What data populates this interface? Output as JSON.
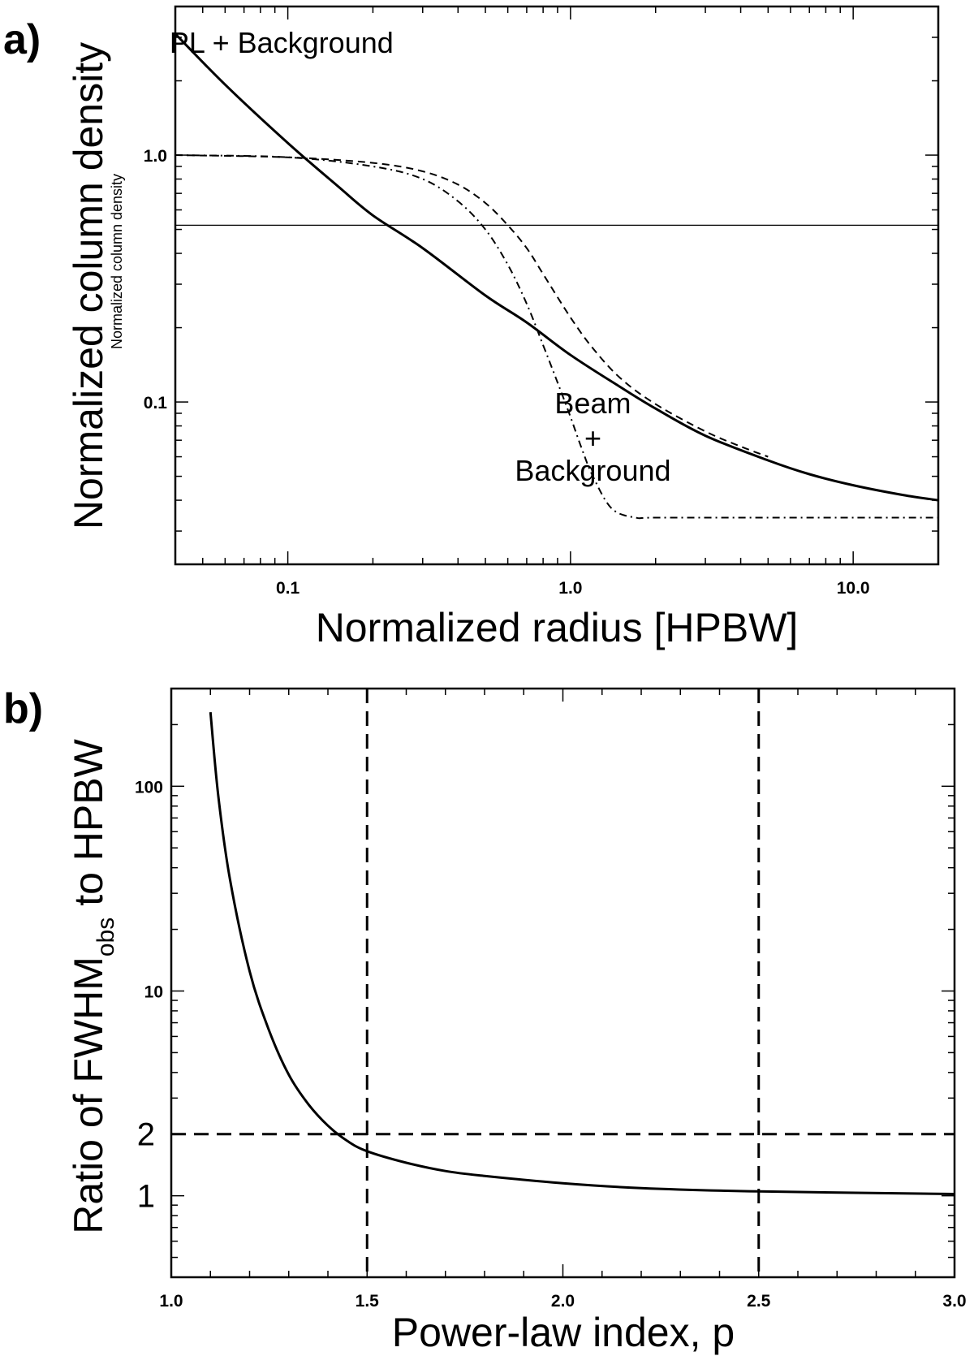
{
  "chart_data": [
    {
      "panel_label": "a)",
      "type": "line",
      "x_scale": "log",
      "y_scale": "log",
      "xlim": [
        0.04,
        20
      ],
      "ylim": [
        0.022,
        4.0
      ],
      "xlabel": "Normalized radius [HPBW]",
      "ylabel": "Normalized column density",
      "ylabel_small": "Normalized column density",
      "x_ticks": [
        {
          "value": 0.1,
          "label": "0.1"
        },
        {
          "value": 1.0,
          "label": "1.0"
        },
        {
          "value": 10.0,
          "label": "10.0"
        }
      ],
      "y_ticks": [
        {
          "value": 0.1,
          "label": "0.1"
        },
        {
          "value": 1.0,
          "label": "1.0"
        }
      ],
      "hline": 0.52,
      "annotations": [
        {
          "text": "PL + Background",
          "x": 0.095,
          "y": 2.6
        },
        {
          "text": "Beam",
          "x": 1.2,
          "y": 0.09
        },
        {
          "text": "+",
          "x": 1.2,
          "y": 0.065
        },
        {
          "text": "Background",
          "x": 1.2,
          "y": 0.048
        }
      ],
      "series": [
        {
          "style": "solid",
          "x": [
            0.04,
            0.06,
            0.1,
            0.15,
            0.2,
            0.3,
            0.5,
            0.7,
            1.0,
            1.5,
            2.0,
            3.0,
            5.0,
            7.0,
            10.0,
            15.0,
            20.0
          ],
          "y": [
            3.1,
            1.93,
            1.12,
            0.75,
            0.57,
            0.42,
            0.27,
            0.21,
            0.155,
            0.115,
            0.094,
            0.073,
            0.058,
            0.051,
            0.046,
            0.042,
            0.04
          ]
        },
        {
          "style": "dashed",
          "x": [
            0.04,
            0.1,
            0.2,
            0.3,
            0.4,
            0.5,
            0.6,
            0.7,
            0.8,
            1.0,
            1.2,
            1.5,
            2.0,
            3.0,
            4.0,
            5.0
          ],
          "y": [
            1.0,
            0.98,
            0.93,
            0.86,
            0.76,
            0.64,
            0.52,
            0.42,
            0.33,
            0.22,
            0.165,
            0.125,
            0.098,
            0.076,
            0.066,
            0.06
          ]
        },
        {
          "style": "dashdot",
          "x": [
            0.04,
            0.1,
            0.2,
            0.3,
            0.4,
            0.5,
            0.6,
            0.7,
            0.8,
            0.9,
            1.0,
            1.1,
            1.2,
            1.4,
            1.7,
            2.0,
            5.0,
            10.0,
            20.0
          ],
          "y": [
            1.0,
            0.98,
            0.9,
            0.8,
            0.65,
            0.5,
            0.36,
            0.25,
            0.17,
            0.12,
            0.087,
            0.064,
            0.05,
            0.037,
            0.034,
            0.034,
            0.034,
            0.034,
            0.034
          ]
        }
      ]
    },
    {
      "panel_label": "b)",
      "type": "line",
      "x_scale": "linear",
      "y_scale": "log",
      "xlim": [
        1.0,
        3.0
      ],
      "ylim": [
        0.4,
        300
      ],
      "xlabel": "Power-law index, p",
      "ylabel_main": "Ratio of FWHM",
      "ylabel_sub": "obs",
      "ylabel_tail": " to HPBW",
      "x_ticks": [
        {
          "value": 1.0,
          "label": "1.0"
        },
        {
          "value": 1.5,
          "label": "1.5"
        },
        {
          "value": 2.0,
          "label": "2.0"
        },
        {
          "value": 2.5,
          "label": "2.5"
        },
        {
          "value": 3.0,
          "label": "3.0"
        }
      ],
      "y_ticks": [
        {
          "value": 10,
          "label": "10"
        },
        {
          "value": 100,
          "label": "100"
        }
      ],
      "y_ticks_big": [
        {
          "value": 1,
          "label": "1"
        },
        {
          "value": 2,
          "label": "2"
        }
      ],
      "vlines": [
        1.5,
        2.5
      ],
      "hline": 2,
      "series": [
        {
          "style": "solid",
          "x": [
            1.1,
            1.12,
            1.15,
            1.2,
            1.25,
            1.3,
            1.35,
            1.4,
            1.45,
            1.5,
            1.6,
            1.7,
            1.8,
            2.0,
            2.2,
            2.5,
            3.0
          ],
          "y": [
            230,
            90,
            35,
            12.5,
            6.4,
            3.9,
            2.8,
            2.2,
            1.85,
            1.65,
            1.45,
            1.32,
            1.25,
            1.15,
            1.09,
            1.05,
            1.02
          ]
        }
      ]
    }
  ]
}
